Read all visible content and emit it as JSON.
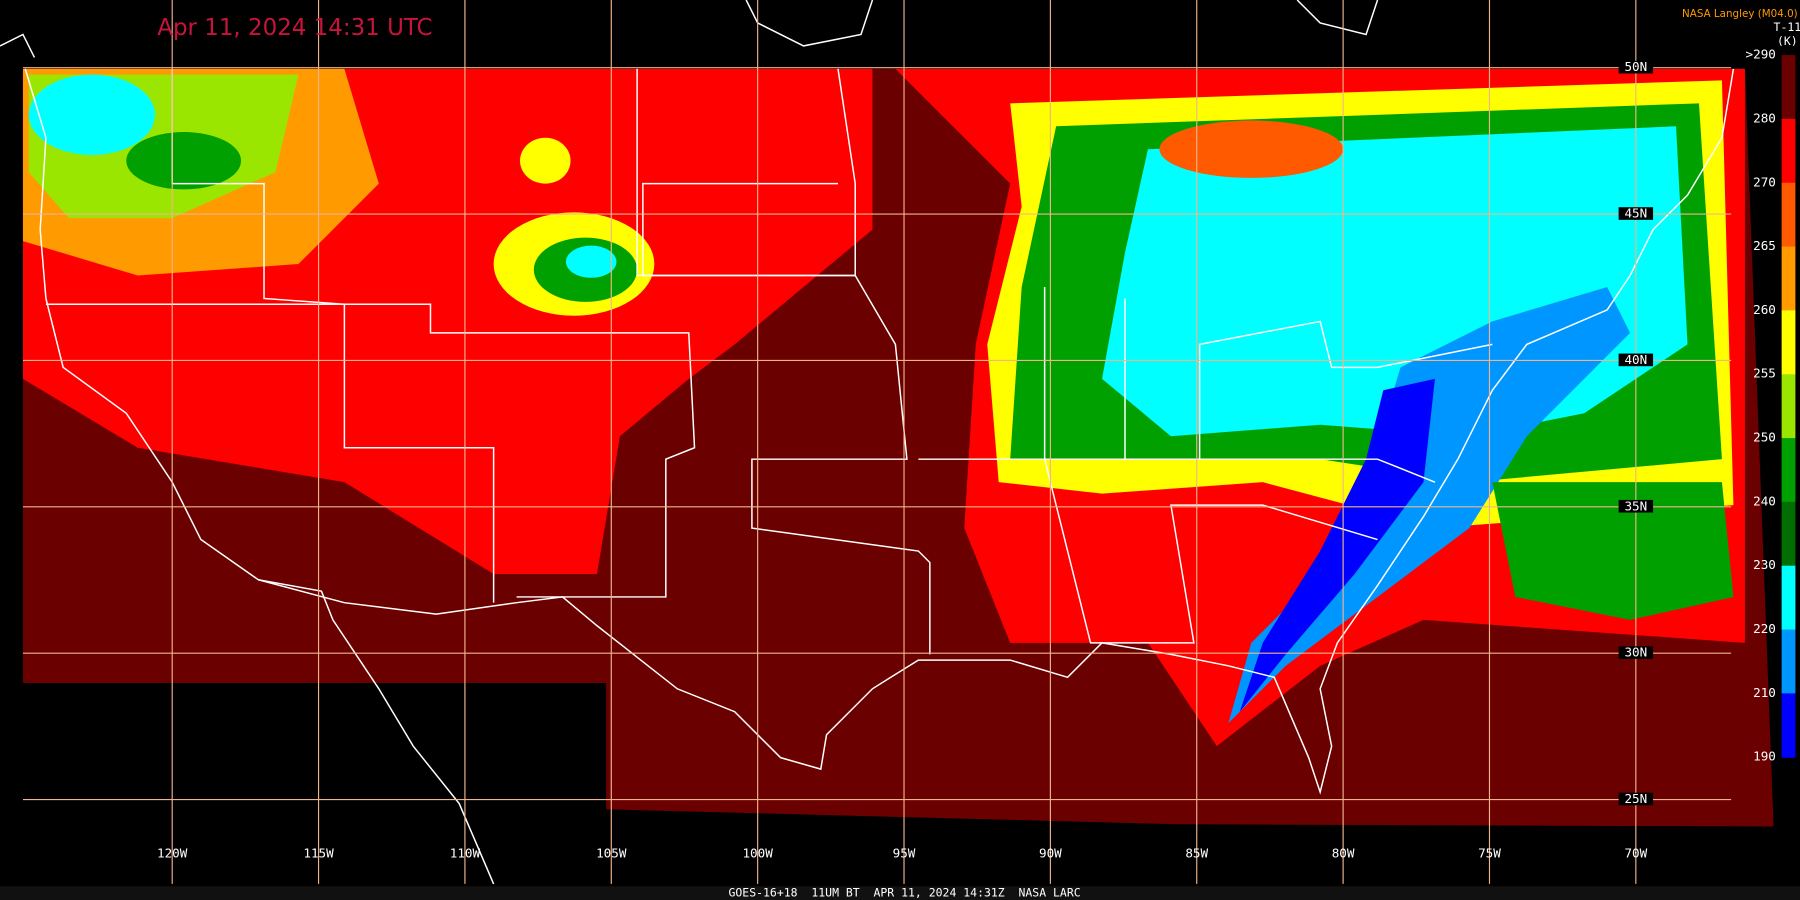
{
  "header": {
    "title": "Apr 11, 2024 14:31 UTC",
    "credit": "NASA Langley (M04.0)"
  },
  "colorbar": {
    "title": "T-11",
    "unit": "(K)",
    "labels": [
      ">290",
      "280",
      "270",
      "265",
      "260",
      "255",
      "250",
      "240",
      "230",
      "220",
      "210",
      "190"
    ],
    "colors": [
      "#6b0000",
      "#ff0000",
      "#ff5a00",
      "#ff9a00",
      "#ffff00",
      "#9be600",
      "#00a000",
      "#006e00",
      "#00ffff",
      "#0096ff",
      "#0000ff",
      "#8a2be2"
    ]
  },
  "grid": {
    "longitudes": [
      "120W",
      "115W",
      "110W",
      "105W",
      "100W",
      "95W",
      "90W",
      "85W",
      "80W",
      "75W",
      "70W"
    ],
    "latitudes": [
      "50N",
      "45N",
      "40N",
      "35N",
      "30N",
      "25N"
    ]
  },
  "footer": "GOES-16+18  11UM BT  APR 11, 2024 14:31Z  NASA LARC"
}
